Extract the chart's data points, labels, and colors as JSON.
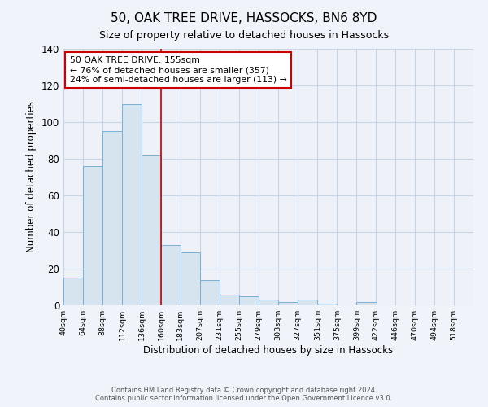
{
  "title": "50, OAK TREE DRIVE, HASSOCKS, BN6 8YD",
  "subtitle": "Size of property relative to detached houses in Hassocks",
  "xlabel": "Distribution of detached houses by size in Hassocks",
  "ylabel": "Number of detached properties",
  "bar_values": [
    15,
    76,
    95,
    110,
    82,
    33,
    29,
    14,
    6,
    5,
    3,
    2,
    3,
    1,
    0,
    2
  ],
  "bar_left_edges": [
    40,
    64,
    88,
    112,
    136,
    160,
    183,
    207,
    231,
    255,
    279,
    303,
    327,
    351,
    375,
    399
  ],
  "bar_widths": [
    24,
    24,
    24,
    24,
    24,
    23,
    24,
    24,
    24,
    24,
    24,
    24,
    24,
    24,
    24,
    24
  ],
  "xtick_positions": [
    40,
    64,
    88,
    112,
    136,
    160,
    183,
    207,
    231,
    255,
    279,
    303,
    327,
    351,
    375,
    399,
    422,
    446,
    470,
    494,
    518
  ],
  "xtick_labels": [
    "40sqm",
    "64sqm",
    "88sqm",
    "112sqm",
    "136sqm",
    "160sqm",
    "183sqm",
    "207sqm",
    "231sqm",
    "255sqm",
    "279sqm",
    "303sqm",
    "327sqm",
    "351sqm",
    "375sqm",
    "399sqm",
    "422sqm",
    "446sqm",
    "470sqm",
    "494sqm",
    "518sqm"
  ],
  "ylim": [
    0,
    140
  ],
  "yticks": [
    0,
    20,
    40,
    60,
    80,
    100,
    120,
    140
  ],
  "xlim_min": 40,
  "xlim_max": 542,
  "bar_color": "#d6e4f0",
  "bar_edge_color": "#7bafd4",
  "vline_x": 160,
  "vline_color": "#cc0000",
  "annotation_line1": "50 OAK TREE DRIVE: 155sqm",
  "annotation_line2": "← 76% of detached houses are smaller (357)",
  "annotation_line3": "24% of semi-detached houses are larger (113) →",
  "annotation_box_color": "#ffffff",
  "annotation_box_edge": "#cc0000",
  "footer_line1": "Contains HM Land Registry data © Crown copyright and database right 2024.",
  "footer_line2": "Contains public sector information licensed under the Open Government Licence v3.0.",
  "background_color": "#f0f4fa",
  "plot_bg_color": "#eef2f8",
  "grid_color": "#c8d4e8",
  "title_fontsize": 11,
  "subtitle_fontsize": 9,
  "xlabel_fontsize": 8.5,
  "ylabel_fontsize": 8.5
}
